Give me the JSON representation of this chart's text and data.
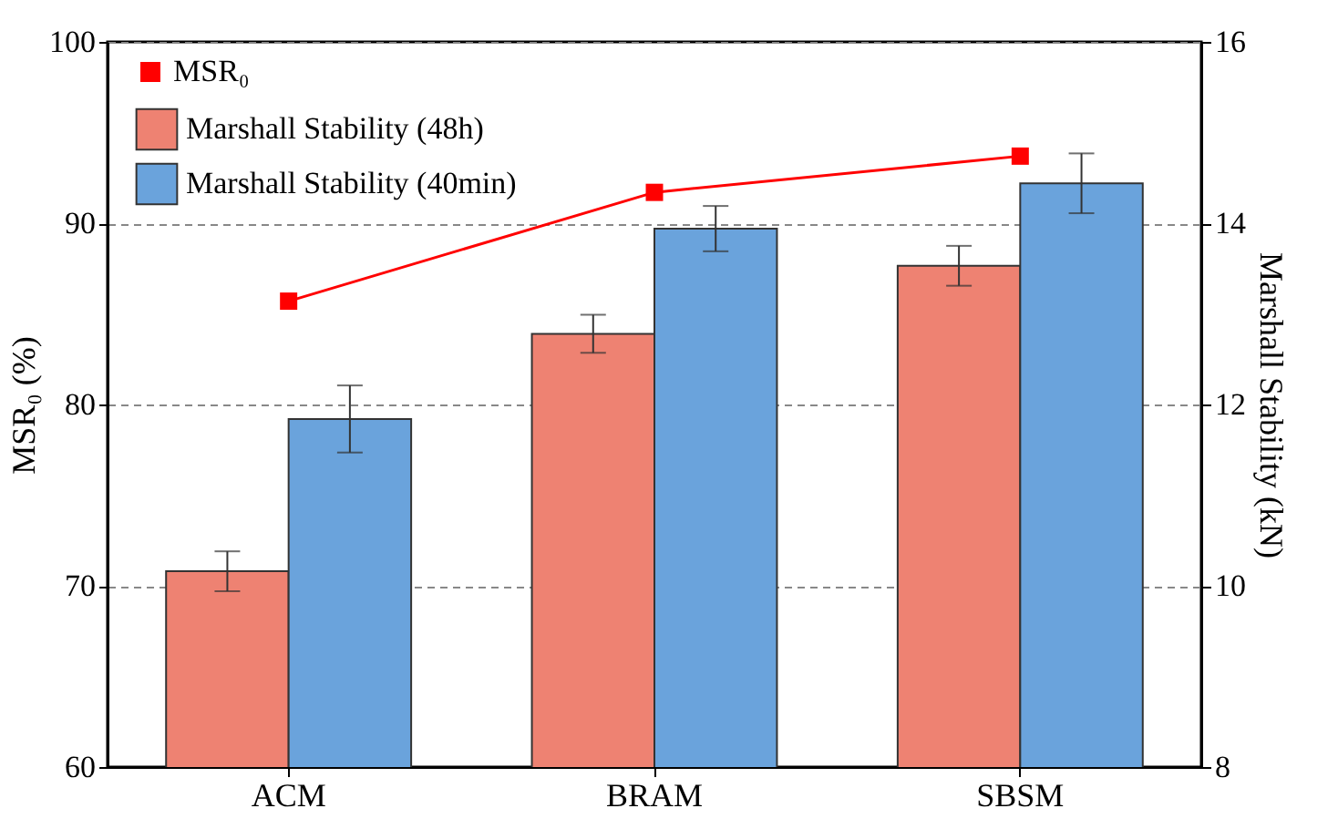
{
  "chart_data": {
    "type": "bar",
    "categories": [
      "ACM",
      "BRAM",
      "SBSM"
    ],
    "series": [
      {
        "name": "MSR₀",
        "type": "line",
        "axis": "y",
        "color": "#ff0000",
        "values": [
          85.7,
          91.7,
          93.7
        ]
      },
      {
        "name": "Marshall Stability (48h)",
        "axis": "y2",
        "color": "#ee8272",
        "values": [
          10.16,
          12.78,
          13.53
        ],
        "errors": [
          0.22,
          0.21,
          0.22
        ]
      },
      {
        "name": "Marshall Stability (40min)",
        "axis": "y2",
        "color": "#6aa3dc",
        "values": [
          11.84,
          13.94,
          14.44
        ],
        "errors": [
          0.37,
          0.25,
          0.33
        ]
      }
    ],
    "ylabel": "MSR₀ (%)",
    "y2label": "Marshall Stability (kN)",
    "ylim": [
      60,
      100
    ],
    "yticks": [
      60,
      70,
      80,
      90,
      100
    ],
    "y2lim": [
      8,
      16
    ],
    "y2ticks": [
      8,
      10,
      12,
      14,
      16
    ],
    "grid": "y",
    "legend": "top left",
    "marker": "square"
  }
}
